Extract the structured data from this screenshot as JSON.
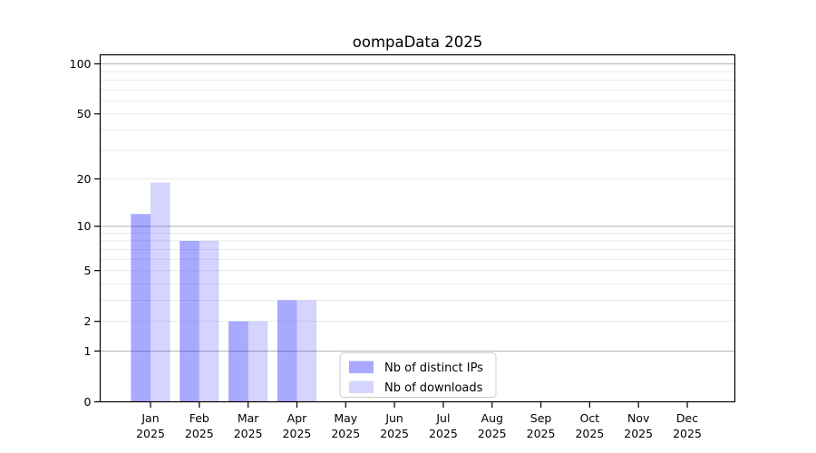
{
  "chart_data": {
    "type": "bar",
    "title": "oompaData 2025",
    "year": "2025",
    "categories": [
      "Jan",
      "Feb",
      "Mar",
      "Apr",
      "May",
      "Jun",
      "Jul",
      "Aug",
      "Sep",
      "Oct",
      "Nov",
      "Dec"
    ],
    "series": [
      {
        "name": "Nb of distinct IPs",
        "color": "#0000FF56",
        "values": [
          12,
          8,
          2,
          3,
          0,
          0,
          0,
          0,
          0,
          0,
          0,
          0
        ]
      },
      {
        "name": "Nb of downloads",
        "color": "#0000FF2B",
        "values": [
          19,
          8,
          2,
          3,
          0,
          0,
          0,
          0,
          0,
          0,
          0,
          0
        ]
      }
    ],
    "yscale": "log1p",
    "ylim": [
      0,
      113
    ],
    "y_ticks": [
      100,
      50,
      20,
      10,
      5,
      2,
      1,
      0
    ],
    "y_major_grid": [
      1,
      10,
      100
    ],
    "y_minor_grid": [
      2,
      3,
      4,
      5,
      6,
      7,
      8,
      9,
      20,
      30,
      40,
      50,
      60,
      70,
      80,
      90
    ],
    "grid": "both",
    "legend_position": "lower center",
    "colors": {
      "grid_minor": "#e9e9e9",
      "grid_major": "#b4b4b4",
      "axis": "#000000",
      "legend_border": "#cccccc",
      "legend_fill": "#ffffff"
    }
  }
}
